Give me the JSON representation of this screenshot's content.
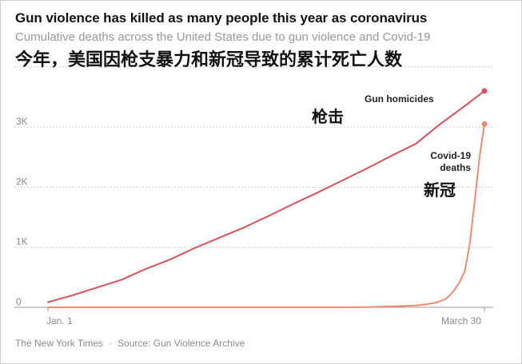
{
  "header": {
    "title": "Gun violence has killed as many people this year as coronavirus",
    "subtitle": "Cumulative deaths across the United States due to gun violence and Covid-19",
    "cn_title": "今年，美国因枪支暴力和新冠导致的累计死亡人数"
  },
  "footer": {
    "publisher": "The New York Times",
    "separator": "·",
    "source": "Source: Gun Violence Archive"
  },
  "colors": {
    "gun_line": "#d6515a",
    "covid_line": "#ec8a72",
    "grid": "#bdbdbd",
    "axis": "#9a9a9a"
  },
  "chart_data": {
    "type": "line",
    "x_domain": [
      "2020-01-01",
      "2020-03-30"
    ],
    "x_ticks": [
      "Jan. 1",
      "March 30"
    ],
    "y_ticks": [
      "0",
      "1K",
      "2K",
      "3K"
    ],
    "ylim": [
      0,
      4000
    ],
    "grid": true,
    "series": [
      {
        "name": "Gun homicides",
        "cn_name": "枪击",
        "key": "gun",
        "points": [
          [
            0,
            85
          ],
          [
            5,
            200
          ],
          [
            10,
            330
          ],
          [
            15,
            460
          ],
          [
            20,
            640
          ],
          [
            25,
            800
          ],
          [
            30,
            990
          ],
          [
            35,
            1160
          ],
          [
            40,
            1330
          ],
          [
            45,
            1520
          ],
          [
            50,
            1720
          ],
          [
            55,
            1910
          ],
          [
            60,
            2110
          ],
          [
            65,
            2310
          ],
          [
            70,
            2520
          ],
          [
            75,
            2720
          ],
          [
            80,
            3050
          ],
          [
            85,
            3350
          ],
          [
            89,
            3600
          ]
        ]
      },
      {
        "name": "Covid-19 deaths",
        "label_lines": [
          "Covid-19",
          "deaths"
        ],
        "cn_name": "新冠",
        "key": "covid",
        "points": [
          [
            0,
            0
          ],
          [
            50,
            0
          ],
          [
            60,
            0
          ],
          [
            65,
            4
          ],
          [
            70,
            15
          ],
          [
            75,
            30
          ],
          [
            77,
            50
          ],
          [
            79,
            75
          ],
          [
            81,
            135
          ],
          [
            82,
            205
          ],
          [
            83,
            300
          ],
          [
            84,
            430
          ],
          [
            85,
            600
          ],
          [
            86,
            1050
          ],
          [
            87,
            1750
          ],
          [
            88,
            2500
          ],
          [
            89,
            3050
          ]
        ]
      }
    ]
  }
}
